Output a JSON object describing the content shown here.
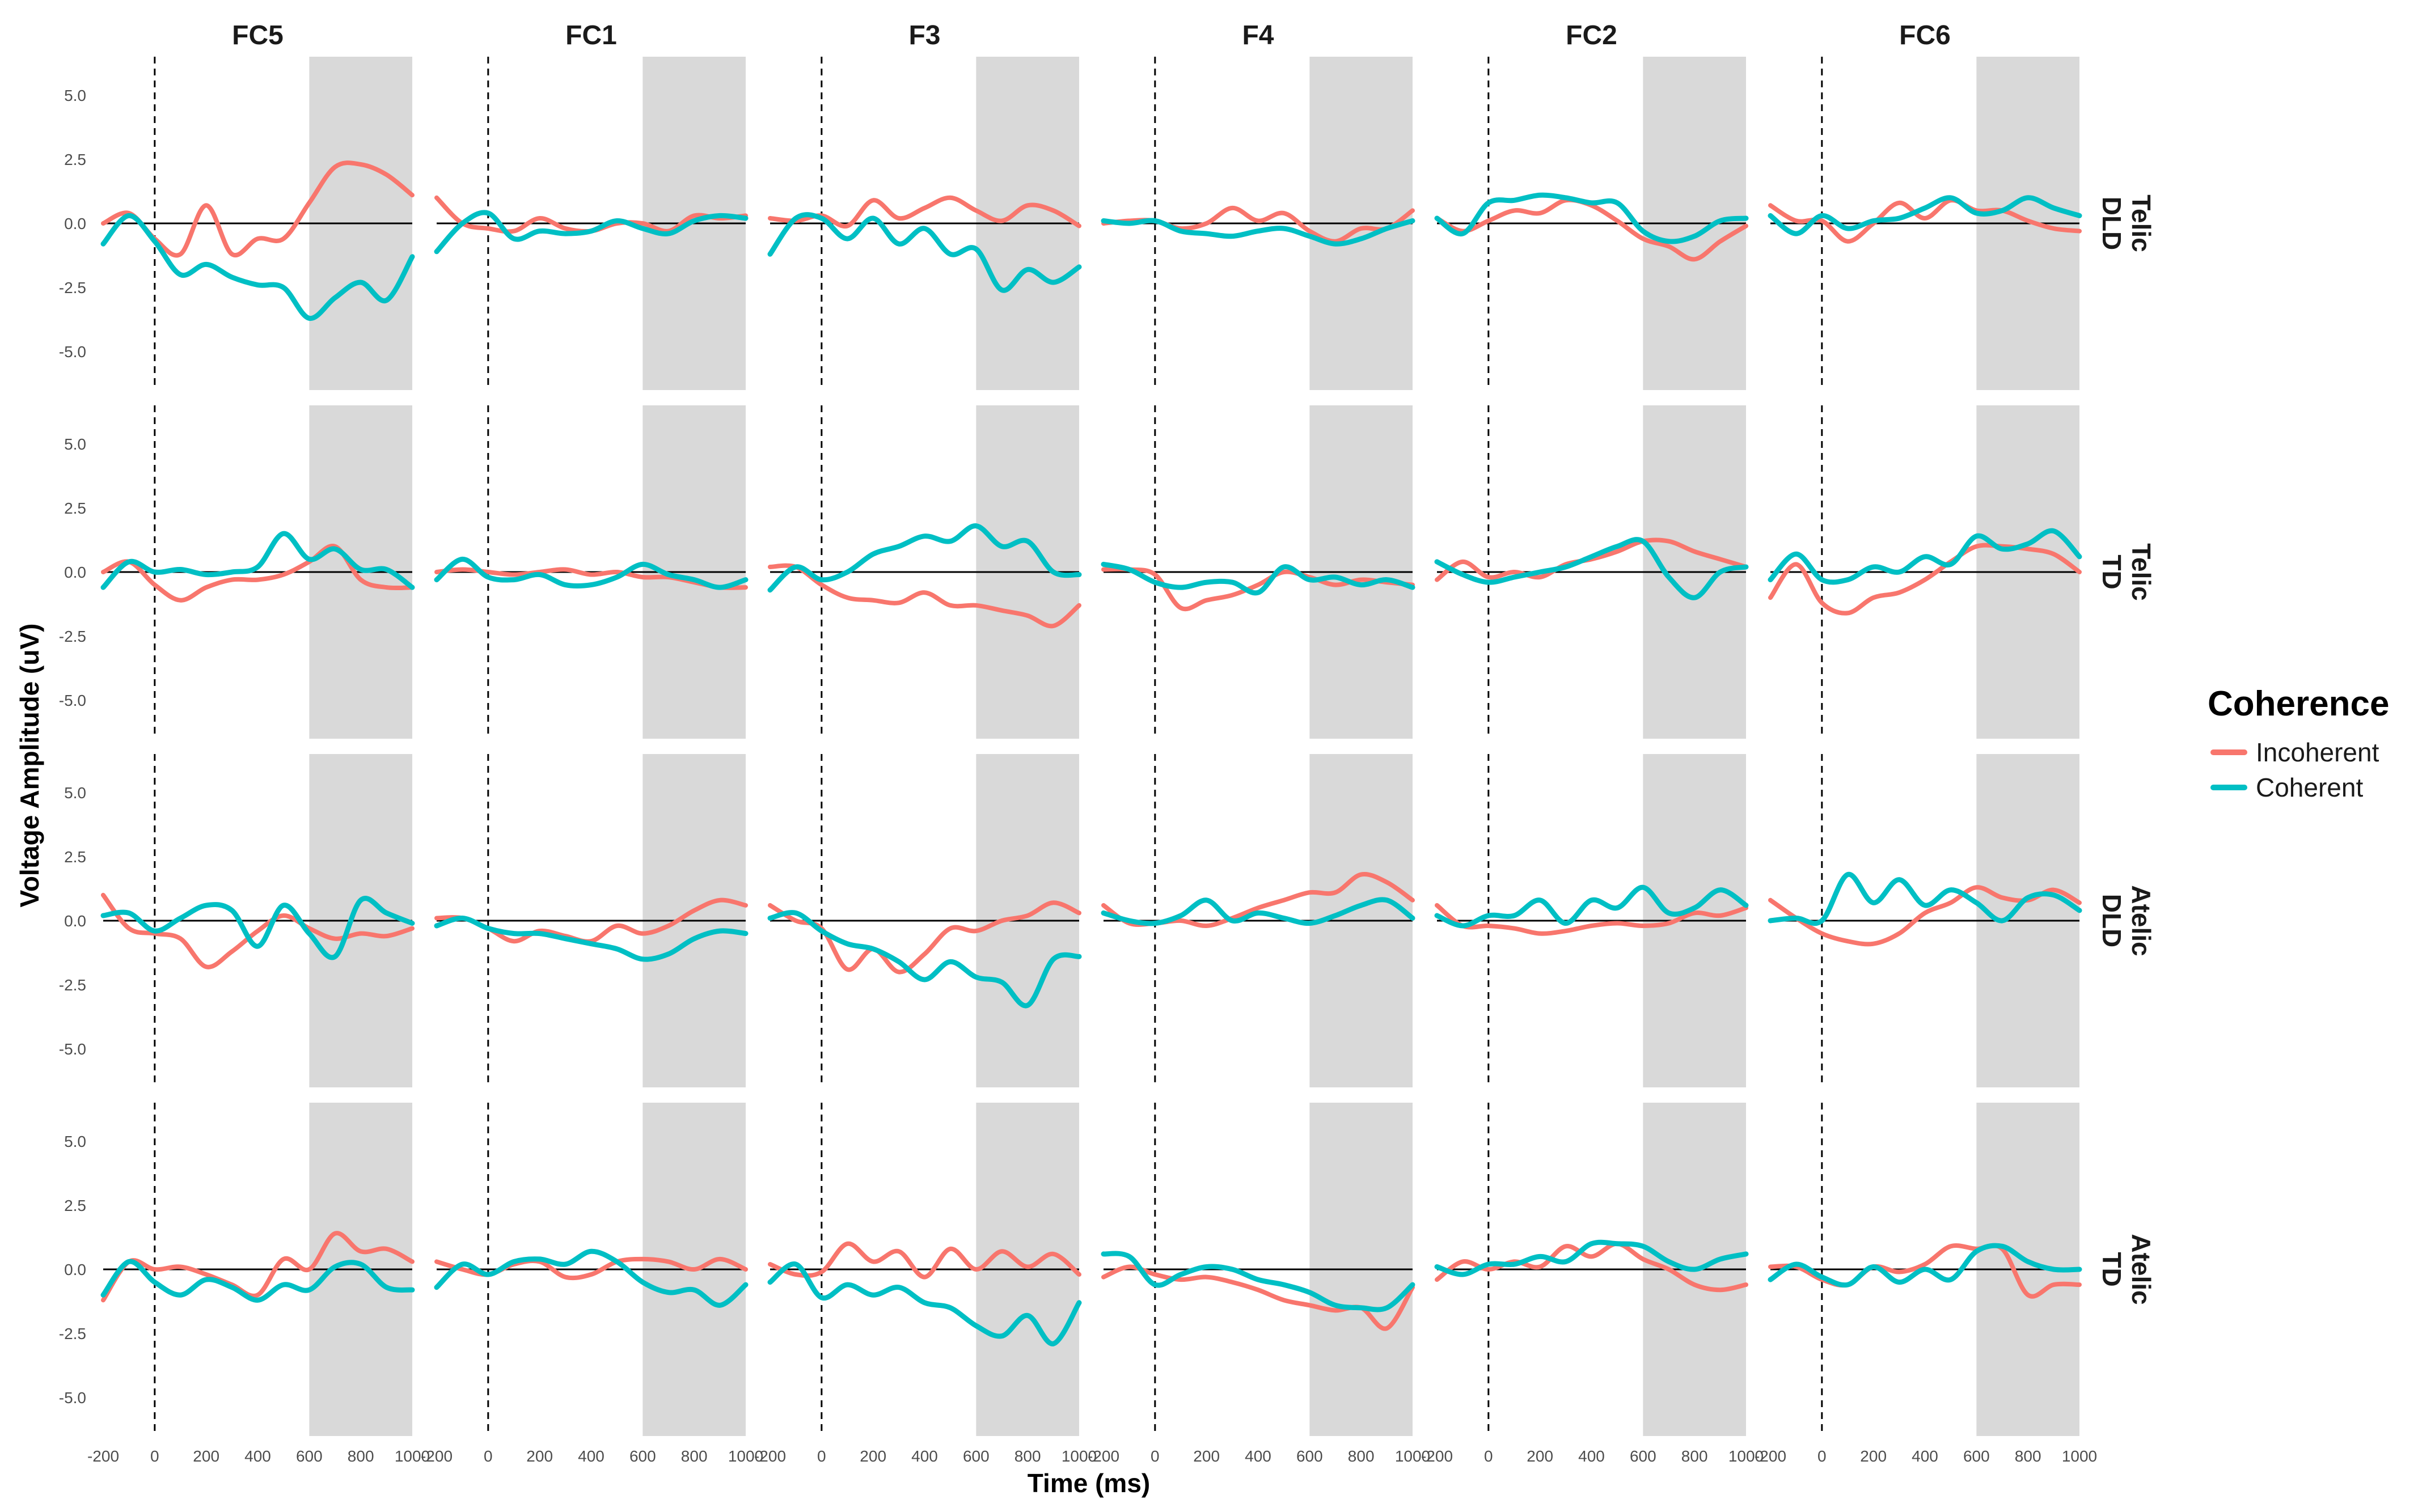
{
  "chart_data": {
    "type": "line",
    "xlabel": "Time (ms)",
    "ylabel": "Voltage Amplitude (uV)",
    "xlim": [
      -200,
      1000
    ],
    "ylim": [
      -6.5,
      6.5
    ],
    "x_ticks": [
      -200,
      0,
      200,
      400,
      600,
      800,
      1000
    ],
    "y_ticks": [
      5.0,
      2.5,
      0.0,
      -2.5,
      -5.0
    ],
    "y_tick_labels": [
      "5.0",
      "2.5",
      "0.0",
      "-2.5",
      "-5.0"
    ],
    "onset_line_x": 0,
    "shaded_window": [
      600,
      1000
    ],
    "columns": [
      "FC5",
      "FC1",
      "F3",
      "F4",
      "FC2",
      "FC6"
    ],
    "rows": [
      {
        "aspect": "Telic",
        "group": "DLD"
      },
      {
        "aspect": "Telic",
        "group": "TD"
      },
      {
        "aspect": "Atelic",
        "group": "DLD"
      },
      {
        "aspect": "Atelic",
        "group": "TD"
      }
    ],
    "legend": {
      "title": "Coherence",
      "entries": [
        {
          "name": "Incoherent",
          "color": "#F8766D"
        },
        {
          "name": "Coherent",
          "color": "#00BFC4"
        }
      ]
    },
    "x": [
      -200,
      -100,
      0,
      100,
      200,
      300,
      400,
      500,
      600,
      700,
      800,
      900,
      1000
    ],
    "series": [
      {
        "row": 0,
        "col": 0,
        "incoherent": [
          0.0,
          0.4,
          -0.6,
          -1.2,
          0.7,
          -1.2,
          -0.6,
          -0.6,
          0.8,
          2.2,
          2.3,
          1.9,
          1.1
        ],
        "coherent": [
          -0.8,
          0.3,
          -0.7,
          -2.0,
          -1.6,
          -2.1,
          -2.4,
          -2.5,
          -3.7,
          -2.9,
          -2.3,
          -3.0,
          -1.3
        ]
      },
      {
        "row": 0,
        "col": 1,
        "incoherent": [
          1.0,
          0.0,
          -0.2,
          -0.3,
          0.2,
          -0.2,
          -0.3,
          0.0,
          0.0,
          -0.3,
          0.3,
          0.2,
          0.3
        ],
        "coherent": [
          -1.1,
          0.0,
          0.4,
          -0.6,
          -0.3,
          -0.4,
          -0.3,
          0.1,
          -0.2,
          -0.4,
          0.1,
          0.3,
          0.2
        ]
      },
      {
        "row": 0,
        "col": 2,
        "incoherent": [
          0.2,
          0.1,
          0.3,
          -0.1,
          0.9,
          0.2,
          0.6,
          1.0,
          0.5,
          0.1,
          0.7,
          0.5,
          -0.1
        ],
        "coherent": [
          -1.2,
          0.2,
          0.2,
          -0.6,
          0.2,
          -0.8,
          -0.2,
          -1.2,
          -1.0,
          -2.6,
          -1.8,
          -2.3,
          -1.7
        ]
      },
      {
        "row": 0,
        "col": 3,
        "incoherent": [
          0.0,
          0.1,
          0.1,
          -0.2,
          0.0,
          0.6,
          0.1,
          0.4,
          -0.3,
          -0.7,
          -0.2,
          -0.2,
          0.5
        ],
        "coherent": [
          0.1,
          0.0,
          0.1,
          -0.3,
          -0.4,
          -0.5,
          -0.3,
          -0.2,
          -0.5,
          -0.8,
          -0.6,
          -0.2,
          0.1
        ]
      },
      {
        "row": 0,
        "col": 4,
        "incoherent": [
          0.2,
          -0.3,
          0.1,
          0.5,
          0.4,
          0.9,
          0.7,
          0.1,
          -0.6,
          -0.9,
          -1.4,
          -0.7,
          -0.1
        ],
        "coherent": [
          0.2,
          -0.4,
          0.8,
          0.9,
          1.1,
          1.0,
          0.8,
          0.8,
          -0.3,
          -0.7,
          -0.5,
          0.1,
          0.2
        ]
      },
      {
        "row": 0,
        "col": 5,
        "incoherent": [
          0.7,
          0.1,
          0.1,
          -0.7,
          0.0,
          0.8,
          0.2,
          0.9,
          0.5,
          0.5,
          0.1,
          -0.2,
          -0.3
        ],
        "coherent": [
          0.3,
          -0.4,
          0.3,
          -0.2,
          0.1,
          0.2,
          0.6,
          1.0,
          0.4,
          0.5,
          1.0,
          0.6,
          0.3
        ]
      },
      {
        "row": 1,
        "col": 0,
        "incoherent": [
          0.0,
          0.4,
          -0.5,
          -1.1,
          -0.6,
          -0.3,
          -0.3,
          -0.1,
          0.4,
          1.0,
          -0.3,
          -0.6,
          -0.6
        ],
        "coherent": [
          -0.6,
          0.4,
          0.0,
          0.1,
          -0.1,
          0.0,
          0.2,
          1.5,
          0.5,
          0.9,
          0.1,
          0.1,
          -0.6
        ]
      },
      {
        "row": 1,
        "col": 1,
        "incoherent": [
          0.0,
          0.1,
          0.0,
          -0.1,
          0.0,
          0.1,
          -0.1,
          0.0,
          -0.2,
          -0.2,
          -0.4,
          -0.6,
          -0.6
        ],
        "coherent": [
          -0.3,
          0.5,
          -0.2,
          -0.3,
          -0.1,
          -0.5,
          -0.5,
          -0.2,
          0.3,
          -0.1,
          -0.3,
          -0.6,
          -0.3
        ]
      },
      {
        "row": 1,
        "col": 2,
        "incoherent": [
          0.2,
          0.2,
          -0.5,
          -1.0,
          -1.1,
          -1.2,
          -0.8,
          -1.3,
          -1.3,
          -1.5,
          -1.7,
          -2.1,
          -1.3
        ],
        "coherent": [
          -0.7,
          0.2,
          -0.3,
          0.0,
          0.7,
          1.0,
          1.4,
          1.2,
          1.8,
          1.0,
          1.2,
          0.0,
          -0.1
        ]
      },
      {
        "row": 1,
        "col": 3,
        "incoherent": [
          0.1,
          0.1,
          -0.1,
          -1.4,
          -1.1,
          -0.9,
          -0.5,
          0.0,
          -0.2,
          -0.5,
          -0.3,
          -0.4,
          -0.5
        ],
        "coherent": [
          0.3,
          0.1,
          -0.4,
          -0.6,
          -0.4,
          -0.4,
          -0.8,
          0.2,
          -0.3,
          -0.2,
          -0.5,
          -0.3,
          -0.6
        ]
      },
      {
        "row": 1,
        "col": 4,
        "incoherent": [
          -0.3,
          0.4,
          -0.2,
          0.0,
          -0.2,
          0.3,
          0.5,
          0.8,
          1.2,
          1.2,
          0.8,
          0.5,
          0.2
        ],
        "coherent": [
          0.4,
          -0.1,
          -0.4,
          -0.2,
          0.0,
          0.2,
          0.6,
          1.0,
          1.2,
          -0.2,
          -1.0,
          0.0,
          0.2
        ]
      },
      {
        "row": 1,
        "col": 5,
        "incoherent": [
          -1.0,
          0.3,
          -1.2,
          -1.6,
          -1.0,
          -0.8,
          -0.3,
          0.4,
          1.0,
          1.0,
          0.9,
          0.7,
          0.0
        ],
        "coherent": [
          -0.3,
          0.7,
          -0.3,
          -0.3,
          0.2,
          0.0,
          0.6,
          0.3,
          1.4,
          0.9,
          1.1,
          1.6,
          0.6
        ]
      },
      {
        "row": 2,
        "col": 0,
        "incoherent": [
          1.0,
          -0.3,
          -0.5,
          -0.7,
          -1.8,
          -1.2,
          -0.4,
          0.2,
          -0.3,
          -0.7,
          -0.5,
          -0.6,
          -0.3
        ],
        "coherent": [
          0.2,
          0.3,
          -0.4,
          0.1,
          0.6,
          0.4,
          -1.0,
          0.6,
          -0.5,
          -1.4,
          0.8,
          0.3,
          -0.1
        ]
      },
      {
        "row": 2,
        "col": 1,
        "incoherent": [
          0.1,
          0.1,
          -0.3,
          -0.8,
          -0.4,
          -0.6,
          -0.8,
          -0.2,
          -0.5,
          -0.2,
          0.4,
          0.8,
          0.6
        ],
        "coherent": [
          -0.2,
          0.1,
          -0.3,
          -0.5,
          -0.5,
          -0.7,
          -0.9,
          -1.1,
          -1.5,
          -1.3,
          -0.7,
          -0.4,
          -0.5
        ]
      },
      {
        "row": 2,
        "col": 2,
        "incoherent": [
          0.6,
          0.0,
          -0.3,
          -1.9,
          -1.1,
          -2.0,
          -1.3,
          -0.3,
          -0.4,
          0.0,
          0.2,
          0.7,
          0.3
        ],
        "coherent": [
          0.1,
          0.3,
          -0.4,
          -0.9,
          -1.1,
          -1.6,
          -2.3,
          -1.6,
          -2.2,
          -2.4,
          -3.3,
          -1.5,
          -1.4
        ]
      },
      {
        "row": 2,
        "col": 3,
        "incoherent": [
          0.6,
          -0.1,
          -0.1,
          0.0,
          -0.2,
          0.1,
          0.5,
          0.8,
          1.1,
          1.1,
          1.8,
          1.5,
          0.8
        ],
        "coherent": [
          0.3,
          0.0,
          -0.1,
          0.2,
          0.8,
          0.0,
          0.3,
          0.1,
          -0.1,
          0.2,
          0.6,
          0.8,
          0.1
        ]
      },
      {
        "row": 2,
        "col": 4,
        "incoherent": [
          0.6,
          -0.2,
          -0.2,
          -0.3,
          -0.5,
          -0.4,
          -0.2,
          -0.1,
          -0.2,
          -0.1,
          0.3,
          0.2,
          0.5
        ],
        "coherent": [
          0.2,
          -0.2,
          0.2,
          0.2,
          0.8,
          -0.1,
          0.8,
          0.5,
          1.3,
          0.3,
          0.5,
          1.2,
          0.6
        ]
      },
      {
        "row": 2,
        "col": 5,
        "incoherent": [
          0.8,
          0.1,
          -0.5,
          -0.8,
          -0.9,
          -0.5,
          0.3,
          0.7,
          1.3,
          0.9,
          0.8,
          1.2,
          0.7
        ],
        "coherent": [
          0.0,
          0.1,
          0.0,
          1.8,
          0.7,
          1.6,
          0.6,
          1.2,
          0.7,
          0.0,
          0.9,
          1.0,
          0.4
        ]
      },
      {
        "row": 3,
        "col": 0,
        "incoherent": [
          -1.2,
          0.3,
          0.0,
          0.1,
          -0.2,
          -0.6,
          -1.0,
          0.4,
          0.0,
          1.4,
          0.7,
          0.8,
          0.3
        ],
        "coherent": [
          -1.0,
          0.3,
          -0.5,
          -1.0,
          -0.4,
          -0.7,
          -1.2,
          -0.6,
          -0.8,
          0.1,
          0.2,
          -0.7,
          -0.8
        ]
      },
      {
        "row": 3,
        "col": 1,
        "incoherent": [
          0.3,
          0.0,
          -0.2,
          0.2,
          0.3,
          -0.3,
          -0.2,
          0.3,
          0.4,
          0.3,
          0.0,
          0.4,
          0.0
        ],
        "coherent": [
          -0.7,
          0.2,
          -0.2,
          0.3,
          0.4,
          0.2,
          0.7,
          0.3,
          -0.5,
          -0.9,
          -0.8,
          -1.4,
          -0.6
        ]
      },
      {
        "row": 3,
        "col": 2,
        "incoherent": [
          0.2,
          -0.2,
          -0.1,
          1.0,
          0.3,
          0.7,
          -0.3,
          0.8,
          0.0,
          0.7,
          0.1,
          0.6,
          -0.2
        ],
        "coherent": [
          -0.5,
          0.2,
          -1.1,
          -0.6,
          -1.0,
          -0.7,
          -1.3,
          -1.5,
          -2.2,
          -2.6,
          -1.8,
          -2.9,
          -1.3
        ]
      },
      {
        "row": 3,
        "col": 3,
        "incoherent": [
          -0.3,
          0.1,
          -0.2,
          -0.4,
          -0.3,
          -0.5,
          -0.8,
          -1.2,
          -1.4,
          -1.6,
          -1.5,
          -2.3,
          -0.7
        ],
        "coherent": [
          0.6,
          0.5,
          -0.6,
          -0.2,
          0.1,
          0.0,
          -0.4,
          -0.6,
          -0.9,
          -1.4,
          -1.5,
          -1.5,
          -0.6
        ]
      },
      {
        "row": 3,
        "col": 4,
        "incoherent": [
          -0.4,
          0.3,
          0.0,
          0.3,
          0.1,
          0.9,
          0.5,
          1.0,
          0.4,
          0.0,
          -0.6,
          -0.8,
          -0.6
        ],
        "coherent": [
          0.1,
          -0.2,
          0.2,
          0.2,
          0.5,
          0.3,
          1.0,
          1.0,
          0.9,
          0.3,
          0.0,
          0.4,
          0.6
        ]
      },
      {
        "row": 3,
        "col": 5,
        "incoherent": [
          0.1,
          0.1,
          -0.4,
          -0.6,
          0.1,
          -0.1,
          0.2,
          0.9,
          0.8,
          0.8,
          -1.0,
          -0.6,
          -0.6
        ],
        "coherent": [
          -0.4,
          0.2,
          -0.3,
          -0.6,
          0.1,
          -0.5,
          0.0,
          -0.4,
          0.7,
          0.9,
          0.3,
          0.0,
          0.0
        ]
      }
    ]
  }
}
